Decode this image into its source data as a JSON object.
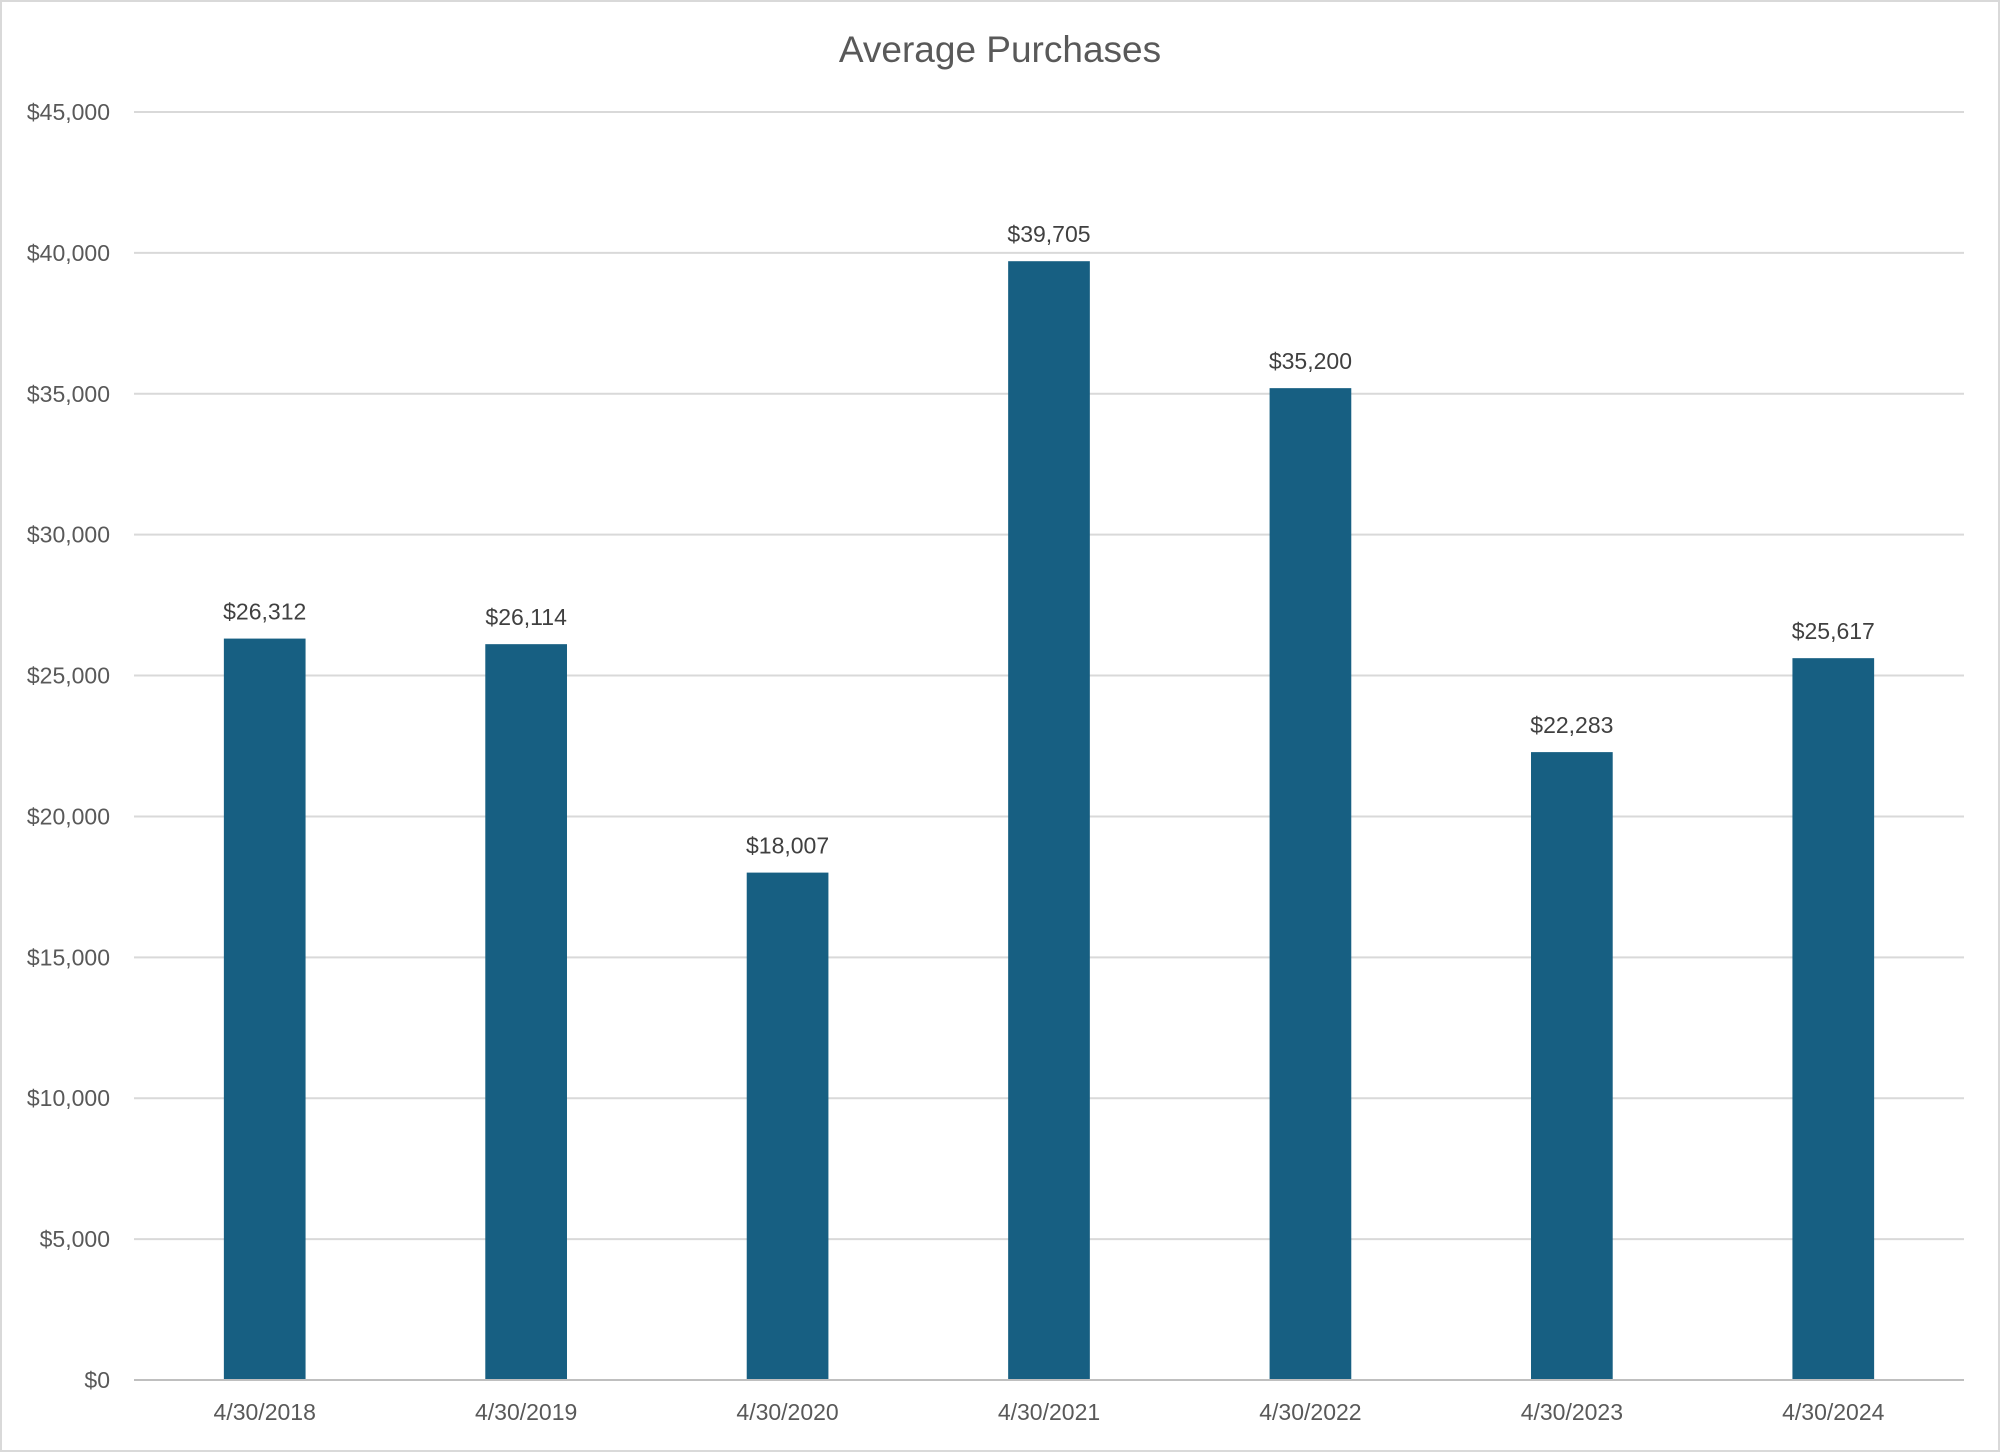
{
  "chart_data": {
    "type": "bar",
    "title": "Average Purchases",
    "xlabel": "",
    "ylabel": "",
    "categories": [
      "4/30/2018",
      "4/30/2019",
      "4/30/2020",
      "4/30/2021",
      "4/30/2022",
      "4/30/2023",
      "4/30/2024"
    ],
    "values": [
      26312,
      26114,
      18007,
      39705,
      35200,
      22283,
      25617
    ],
    "data_labels": [
      "$26,312",
      "$26,114",
      "$18,007",
      "$39,705",
      "$35,200",
      "$22,283",
      "$25,617"
    ],
    "ylim": [
      0,
      45000
    ],
    "yticks": [
      0,
      5000,
      10000,
      15000,
      20000,
      25000,
      30000,
      35000,
      40000,
      45000
    ],
    "ytick_labels": [
      "$0",
      "$5,000",
      "$10,000",
      "$15,000",
      "$20,000",
      "$25,000",
      "$30,000",
      "$35,000",
      "$40,000",
      "$45,000"
    ],
    "grid": true,
    "legend": "none",
    "colors": {
      "bar": "#175f82",
      "grid": "#d9d9d9",
      "axis": "#bfbfbf"
    }
  }
}
